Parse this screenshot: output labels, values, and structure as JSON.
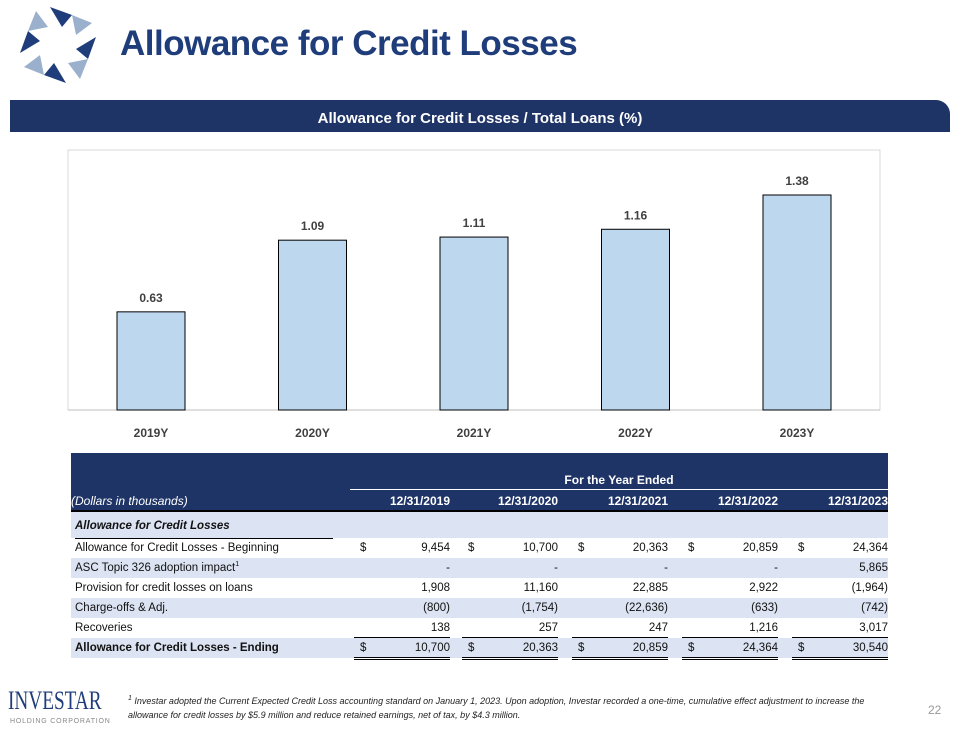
{
  "header": {
    "title": "Allowance for Credit Losses",
    "banner": "Allowance for Credit Losses / Total Loans (%)"
  },
  "chart_data": {
    "type": "bar",
    "categories": [
      "2019Y",
      "2020Y",
      "2021Y",
      "2022Y",
      "2023Y"
    ],
    "values": [
      0.63,
      1.09,
      1.11,
      1.16,
      1.38
    ],
    "data_labels": [
      "0.63",
      "1.09",
      "1.11",
      "1.16",
      "1.38"
    ],
    "title": "Allowance for Credit Losses / Total Loans (%)",
    "bar_color": "#bdd7ee",
    "grid": false
  },
  "table": {
    "super_header": "For the Year Ended",
    "unit_label": "(Dollars in thousands)",
    "columns": [
      "12/31/2019",
      "12/31/2020",
      "12/31/2021",
      "12/31/2022",
      "12/31/2023"
    ],
    "section": "Allowance for Credit Losses",
    "rows": [
      {
        "label": "Allowance for Credit Losses - Beginning",
        "dollar": "$",
        "values": [
          "9,454",
          "10,700",
          "20,363",
          "20,859",
          "24,364"
        ]
      },
      {
        "label": "ASC Topic 326 adoption impact",
        "sup": "1",
        "values": [
          "-",
          "-",
          "-",
          "-",
          "5,865"
        ]
      },
      {
        "label": "Provision for credit losses on loans",
        "values": [
          "1,908",
          "11,160",
          "22,885",
          "2,922",
          "(1,964)"
        ]
      },
      {
        "label": "Charge-offs & Adj.",
        "values": [
          "(800)",
          "(1,754)",
          "(22,636)",
          "(633)",
          "(742)"
        ]
      },
      {
        "label": "Recoveries",
        "values": [
          "138",
          "257",
          "247",
          "1,216",
          "3,017"
        ]
      },
      {
        "label": "Allowance for Credit Losses - Ending",
        "dollar": "$",
        "values": [
          "10,700",
          "20,363",
          "20,859",
          "24,364",
          "30,540"
        ]
      }
    ]
  },
  "footer": {
    "logo": "INVESTAR",
    "logo_sub": "HOLDING CORPORATION",
    "footnote_mark": "1",
    "footnote": "Investar adopted the Current Expected Credit Loss accounting standard on January 1, 2023. Upon adoption, Investar recorded a one-time, cumulative effect adjustment to increase the allowance for credit losses by $5.9 million and reduce retained earnings, net of tax, by $4.3 million.",
    "page_number": "22"
  }
}
